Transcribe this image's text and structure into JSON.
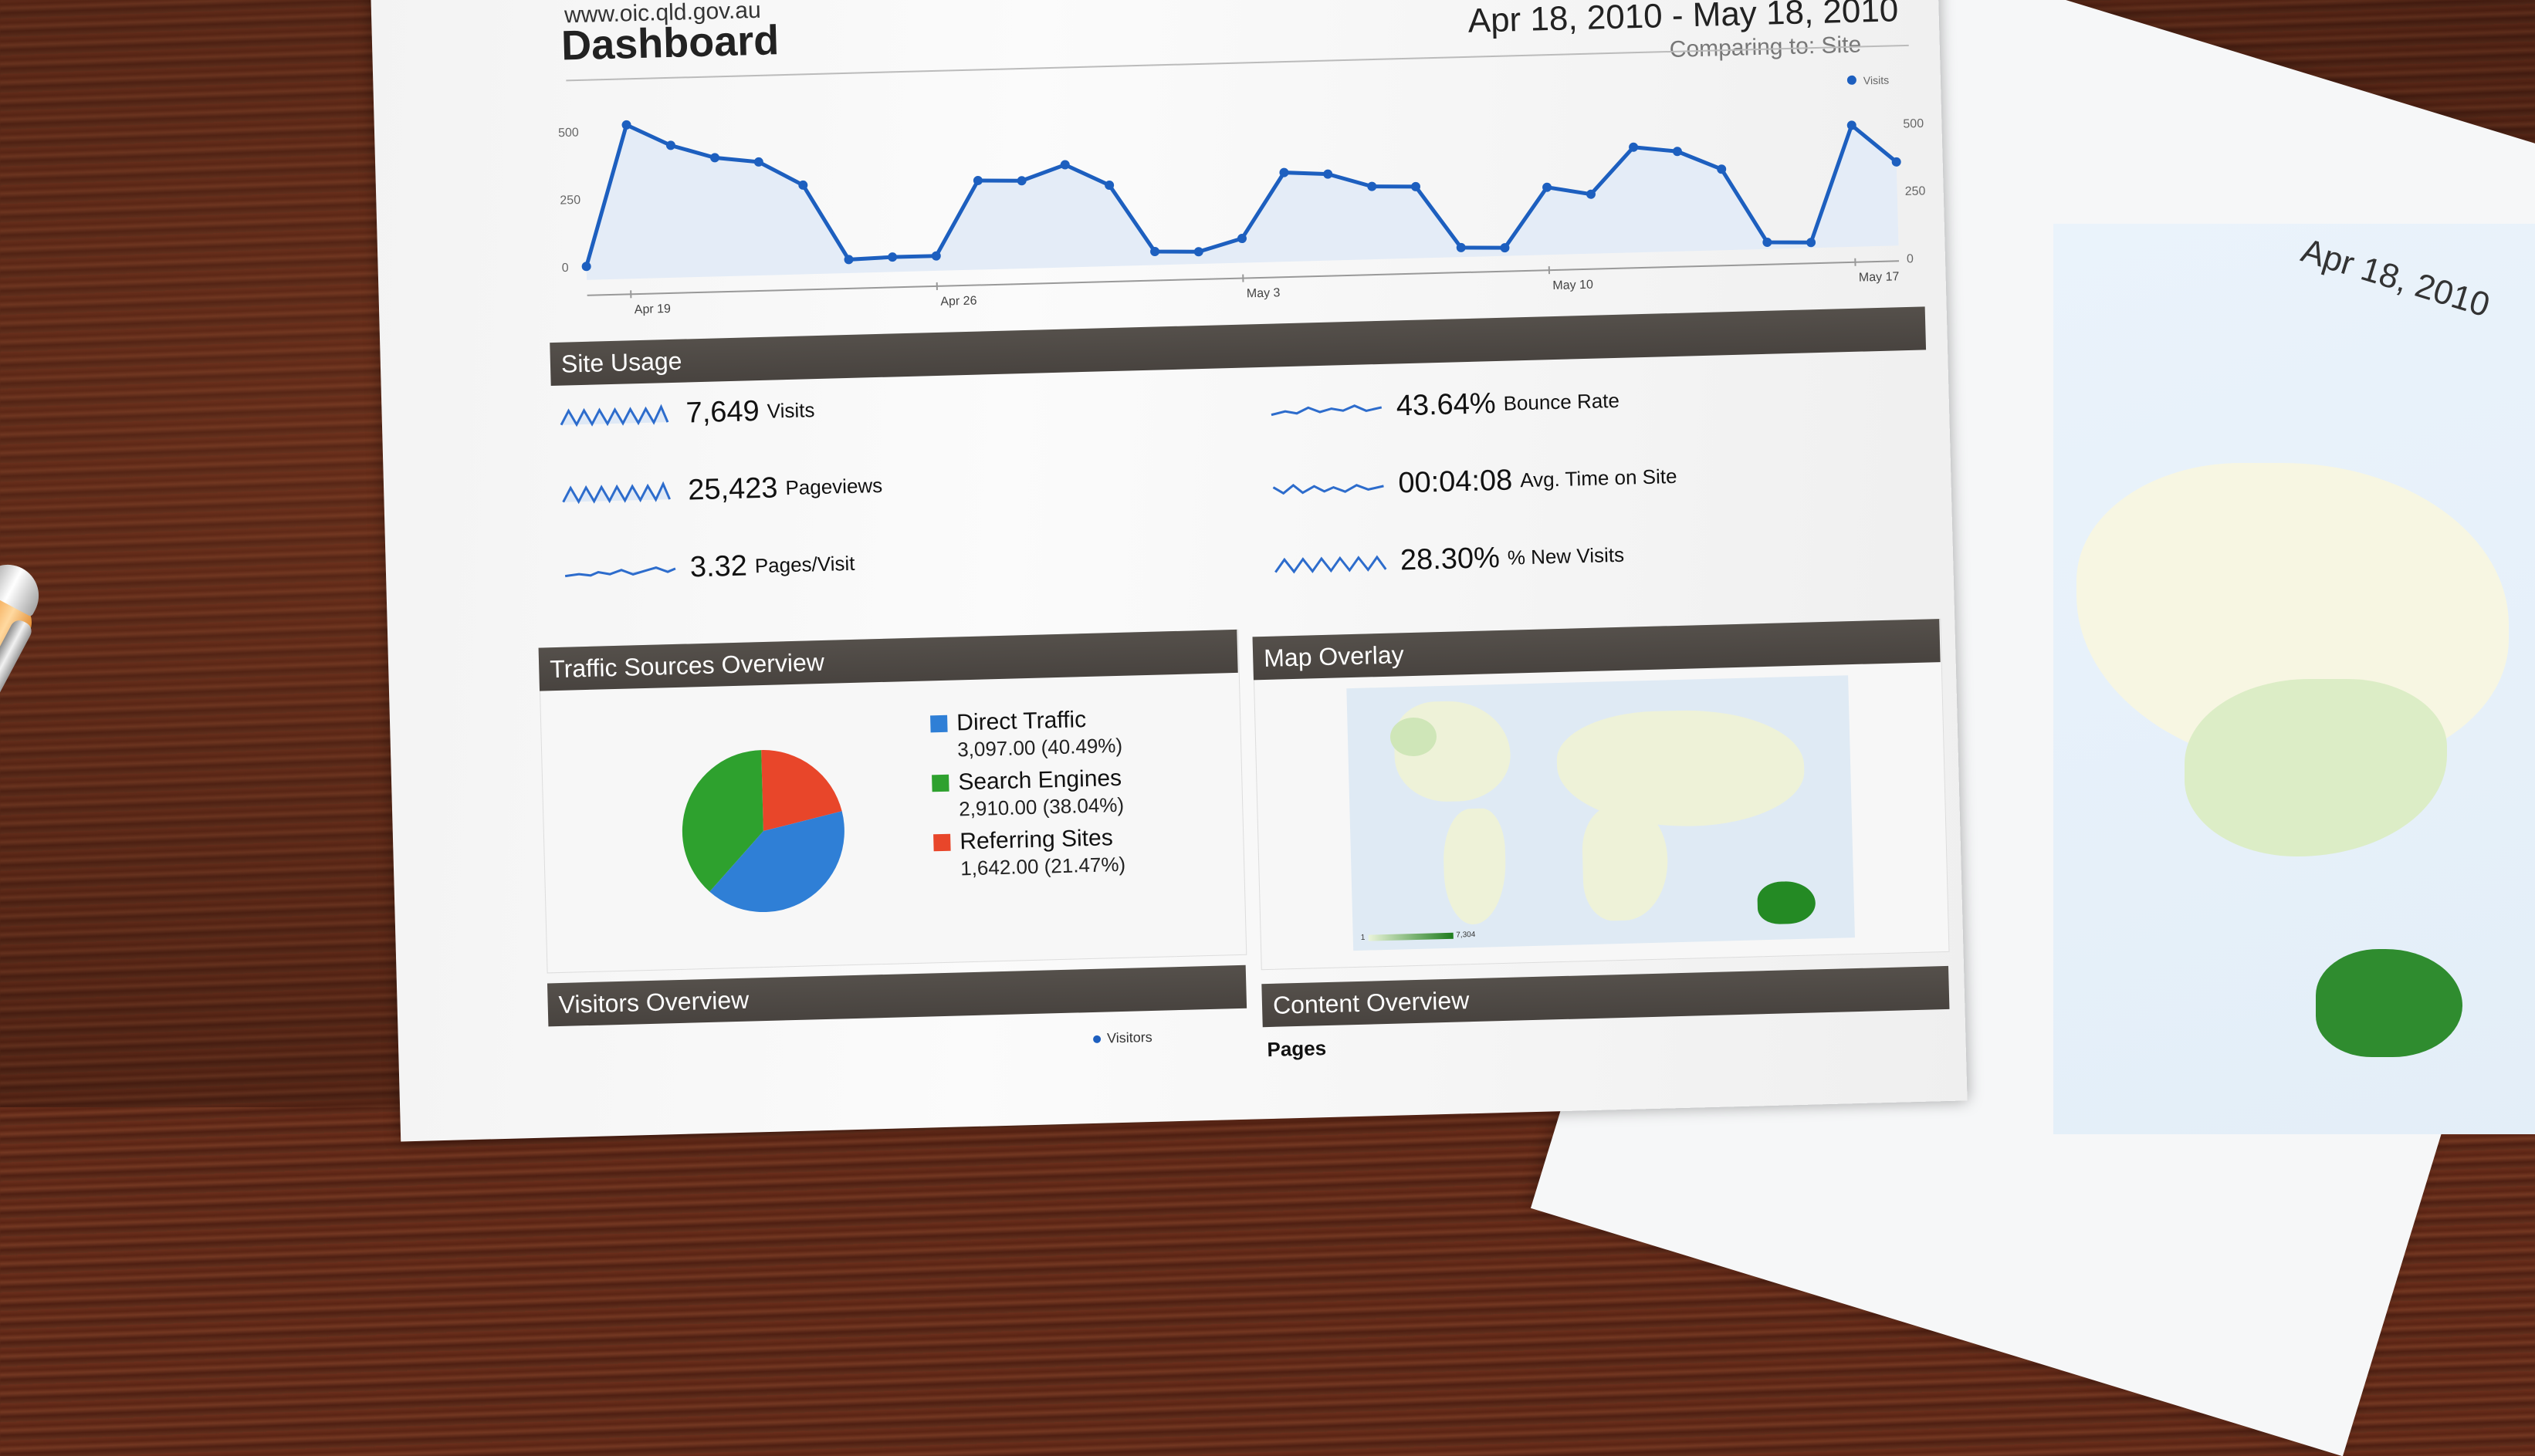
{
  "header": {
    "url": "www.oic.qld.gov.au",
    "title": "Dashboard",
    "date_range": "Apr 18, 2010 - May 18, 2010",
    "comparing": "Comparing to: Site"
  },
  "chart_data": {
    "type": "line",
    "series": [
      {
        "name": "Visits",
        "values": [
          0,
          520,
          440,
          390,
          370,
          280,
          0,
          5,
          5,
          280,
          275,
          330,
          250,
          0,
          -5,
          40,
          280,
          270,
          220,
          215,
          -15,
          -20,
          200,
          170,
          340,
          320,
          250,
          -25,
          -30,
          400,
          260
        ]
      }
    ],
    "x_tick_labels": [
      "Apr 19",
      "Apr 26",
      "May 3",
      "May 10",
      "May 17"
    ],
    "ytick_left": [
      "500",
      "250",
      "0"
    ],
    "ytick_right": [
      "500",
      "250",
      "0"
    ],
    "ylim": [
      0,
      550
    ]
  },
  "site_usage": {
    "title": "Site Usage",
    "metrics": [
      {
        "value": "7,649",
        "label": "Visits"
      },
      {
        "value": "43.64%",
        "label": "Bounce Rate"
      },
      {
        "value": "25,423",
        "label": "Pageviews"
      },
      {
        "value": "00:04:08",
        "label": "Avg. Time on Site"
      },
      {
        "value": "3.32",
        "label": "Pages/Visit"
      },
      {
        "value": "28.30%",
        "label": "% New Visits"
      }
    ]
  },
  "traffic": {
    "title": "Traffic Sources Overview",
    "items": [
      {
        "name": "Direct Traffic",
        "value": "3,097.00 (40.49%)",
        "pct": 40.49,
        "color": "#2f7fd6"
      },
      {
        "name": "Search Engines",
        "value": "2,910.00 (38.04%)",
        "pct": 38.04,
        "color": "#2ea12e"
      },
      {
        "name": "Referring Sites",
        "value": "1,642.00 (21.47%)",
        "pct": 21.47,
        "color": "#e8462a"
      }
    ]
  },
  "map": {
    "title": "Map Overlay",
    "legend_label": "Visits",
    "min": "1",
    "max": "7,304"
  },
  "visitors": {
    "title": "Visitors Overview",
    "legend": "Visitors"
  },
  "content": {
    "title": "Content Overview",
    "sub": "Pages"
  },
  "paper2": {
    "date": "Apr 18, 2010"
  }
}
